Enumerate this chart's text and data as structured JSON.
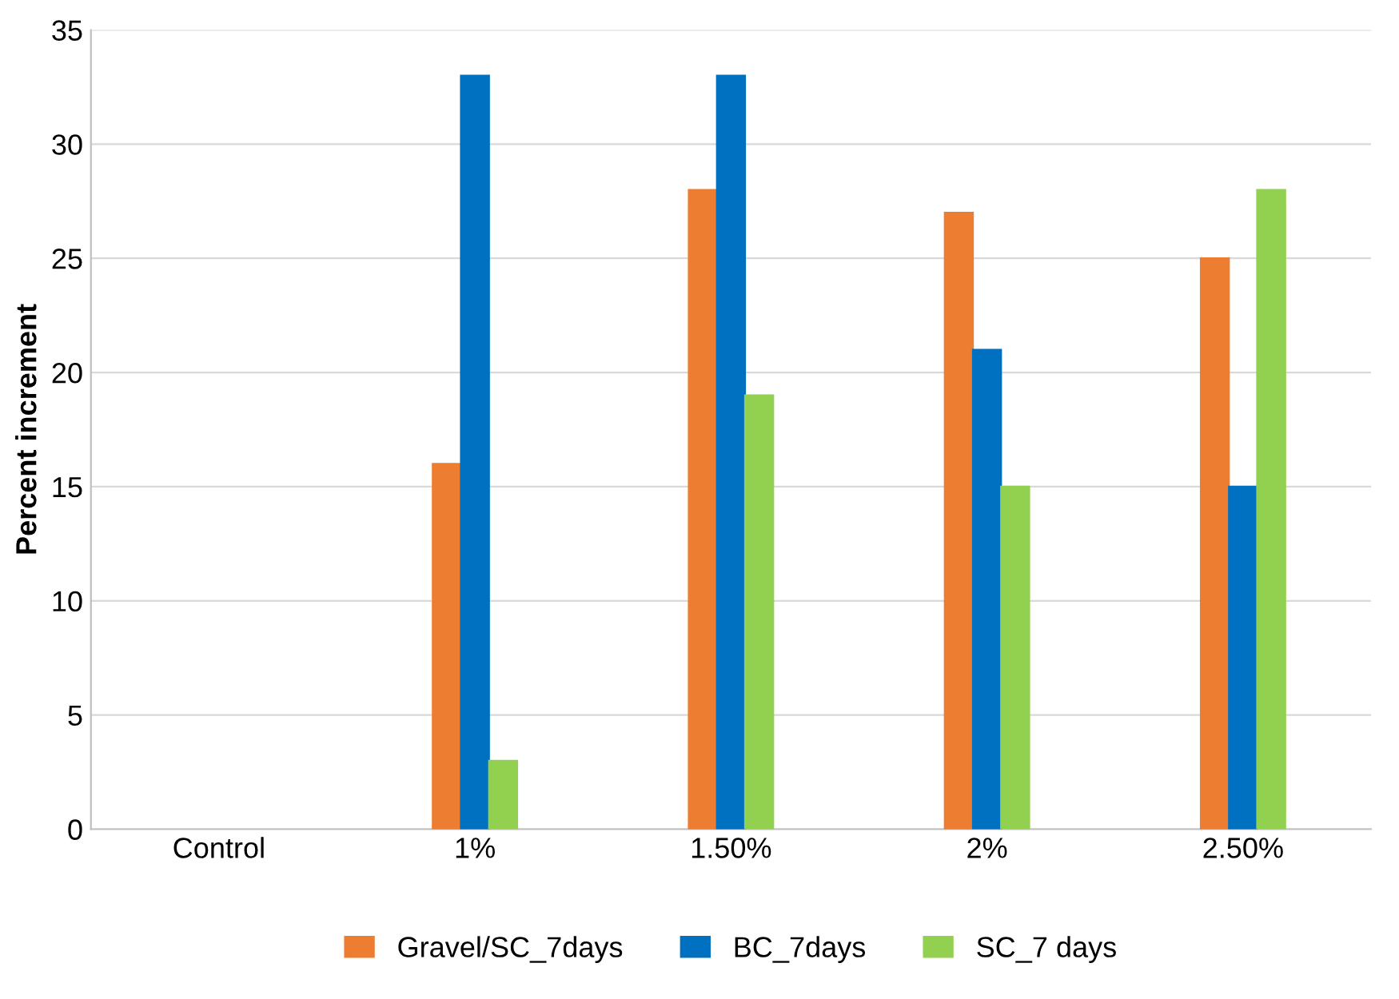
{
  "chart_data": {
    "type": "bar",
    "ylabel": "Percent increment",
    "categories": [
      "Control",
      "1%",
      "1.50%",
      "2%",
      "2.50%"
    ],
    "series": [
      {
        "name": "Gravel/SC_7days",
        "color": "#ed7d31",
        "values": [
          null,
          16,
          28,
          27,
          25
        ]
      },
      {
        "name": "BC_7days",
        "color": "#0070c0",
        "values": [
          null,
          33,
          33,
          21,
          15
        ]
      },
      {
        "name": "SC_7 days",
        "color": "#92d050",
        "values": [
          null,
          3,
          19,
          15,
          28
        ]
      }
    ],
    "ylim": [
      0,
      35
    ],
    "yticks": [
      0,
      5,
      10,
      15,
      20,
      25,
      30,
      35
    ],
    "grid": "y",
    "legend": "bottom"
  }
}
